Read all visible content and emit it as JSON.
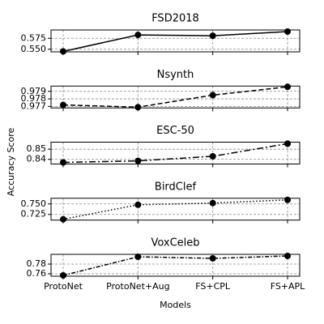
{
  "chart_data": [
    {
      "type": "line",
      "title": "FSD2018",
      "linestyle": "solid",
      "color": "#000000",
      "values": [
        0.545,
        0.5827,
        0.5808,
        0.5904
      ],
      "ylim": [
        0.544,
        0.594
      ],
      "yticks": [
        {
          "value": 0.55,
          "label": "0.550"
        },
        0.575
      ],
      "grid": true
    },
    {
      "type": "line",
      "title": "Nsynth",
      "linestyle": "dashed",
      "color": "#000000",
      "values": [
        0.9772,
        0.9769,
        0.9785,
        0.9796
      ],
      "ylim": [
        0.9768,
        0.9797
      ],
      "yticks": [
        0.977,
        0.978,
        0.979
      ],
      "grid": true
    },
    {
      "type": "line",
      "title": "ESC-50",
      "linestyle": "dashdot",
      "color": "#000000",
      "values": [
        0.837,
        0.8385,
        0.843,
        0.8554
      ],
      "ylim": [
        0.8354,
        0.8569
      ],
      "yticks": [
        0.84,
        0.85
      ],
      "grid": true,
      "ylabel": "Accuracy Score"
    },
    {
      "type": "line",
      "title": "BirdClef",
      "linestyle": "dotted",
      "color": "#000000",
      "values": [
        0.7135,
        0.748,
        0.752,
        0.7596
      ],
      "ylim": [
        0.7115,
        0.7635
      ],
      "yticks": [
        0.725,
        {
          "value": 0.75,
          "label": "0.750"
        }
      ],
      "grid": true
    },
    {
      "type": "line",
      "title": "VoxCeleb",
      "linestyle": "loose-dashdot",
      "color": "#000000",
      "values": [
        0.7567,
        0.795,
        0.7917,
        0.7967
      ],
      "ylim": [
        0.755,
        0.8
      ],
      "yticks": [
        0.76,
        0.78
      ],
      "grid": true,
      "categories": [
        "ProtoNet",
        "ProtoNet+Aug",
        "FS+CPL",
        "FS+APL"
      ],
      "xlabel": "Models"
    }
  ]
}
